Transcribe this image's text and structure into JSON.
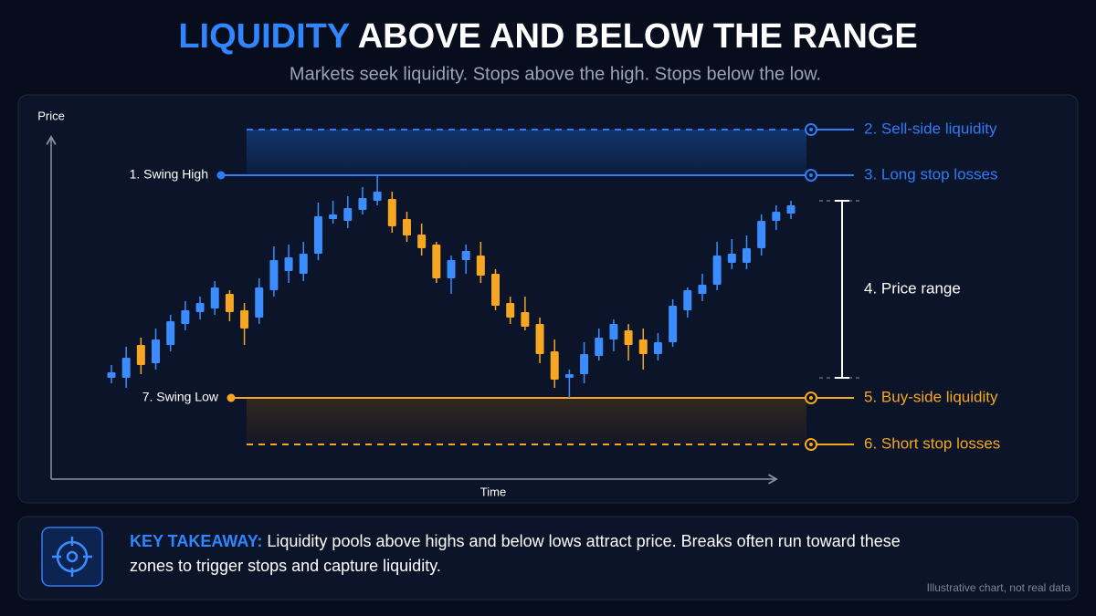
{
  "header": {
    "title_highlight": "LIQUIDITY",
    "title_rest": "ABOVE AND BELOW THE RANGE",
    "subtitle": "Markets seek liquidity. Stops above the high. Stops below the low."
  },
  "chart_data": {
    "type": "candlestick",
    "x_label": "Time",
    "y_label": "Price",
    "ylim": [
      0,
      100
    ],
    "up_color": "#3b8cff",
    "down_color": "#f5a623",
    "open": [
      29,
      29,
      38,
      33,
      38,
      43.75,
      47,
      48,
      52,
      47.5,
      45.5,
      53,
      58.25,
      57.5,
      63,
      72.5,
      72,
      75,
      77.5,
      78,
      72.5,
      68.25,
      65.5,
      56.25,
      61.25,
      62.5,
      57.5,
      49.5,
      47,
      43.75,
      36.25,
      29,
      30,
      35,
      39.5,
      42,
      39.5,
      35.5,
      38.75,
      47.5,
      52,
      54.5,
      60.5,
      60.5,
      64.5,
      72,
      74
    ],
    "high": [
      32.5,
      37.5,
      40,
      42.5,
      46.25,
      50,
      51.25,
      55.5,
      53,
      49.5,
      56.25,
      65,
      65.5,
      66.25,
      77,
      77.5,
      78.75,
      81.25,
      84.5,
      80,
      74.5,
      71.25,
      66.25,
      62.5,
      65.5,
      66.25,
      58.75,
      51.25,
      51.25,
      45.5,
      39.5,
      31.25,
      38.75,
      42.5,
      45,
      43.75,
      42.5,
      41.25,
      50.5,
      53.75,
      57.5,
      66.25,
      67,
      68,
      73.75,
      76.25,
      77.5
    ],
    "low": [
      27.5,
      26.25,
      30,
      31.25,
      36.25,
      42,
      45,
      46.25,
      44.5,
      38,
      43.75,
      51.25,
      55,
      55.5,
      61.25,
      71.25,
      70,
      73.75,
      76.25,
      68.75,
      66.25,
      62.5,
      55,
      52,
      57.5,
      55,
      47.5,
      43.75,
      42,
      33,
      26.25,
      23.5,
      27.5,
      33.75,
      36.25,
      33.75,
      31.25,
      33.75,
      37.5,
      45.5,
      50,
      53,
      58.75,
      58.75,
      62.5,
      69.5,
      72.5
    ],
    "close": [
      30.5,
      34.5,
      32.5,
      39.5,
      44.5,
      47.5,
      49.5,
      53.75,
      47,
      42.5,
      53.75,
      61.25,
      62,
      63,
      73.25,
      73.75,
      75.5,
      78.25,
      80,
      70.5,
      68,
      64.5,
      56.25,
      61.25,
      63.75,
      57,
      48.75,
      45.5,
      43,
      35.5,
      28.5,
      30,
      35.5,
      40,
      43.75,
      38,
      35.5,
      38.75,
      48.75,
      53,
      54.5,
      62.5,
      63,
      64.5,
      72,
      74.5,
      76.25
    ],
    "levels": [
      {
        "label": "2. Sell-side liquidity",
        "value": 97,
        "color": "#2f7cf6",
        "dashed": true
      },
      {
        "label": "3. Long stop losses",
        "value": 84.5,
        "color": "#2f7cf6",
        "dashed": false,
        "marker_label": "1. Swing High"
      },
      {
        "label": "5. Buy-side liquidity",
        "value": 23.5,
        "color": "#f5a623",
        "dashed": false,
        "marker_label": "7. Swing Low"
      },
      {
        "label": "6. Short stop losses",
        "value": 10.75,
        "color": "#f5a623",
        "dashed": true
      }
    ],
    "range": {
      "label": "4. Price range",
      "values": [
        77.5,
        29
      ]
    }
  },
  "footer": {
    "label": "KEY TAKEAWAY:",
    "text": "Liquidity pools above highs and below lows attract price. Breaks often run toward these zones to trigger stops and capture liquidity.",
    "note": "Illustrative chart, not real data"
  }
}
